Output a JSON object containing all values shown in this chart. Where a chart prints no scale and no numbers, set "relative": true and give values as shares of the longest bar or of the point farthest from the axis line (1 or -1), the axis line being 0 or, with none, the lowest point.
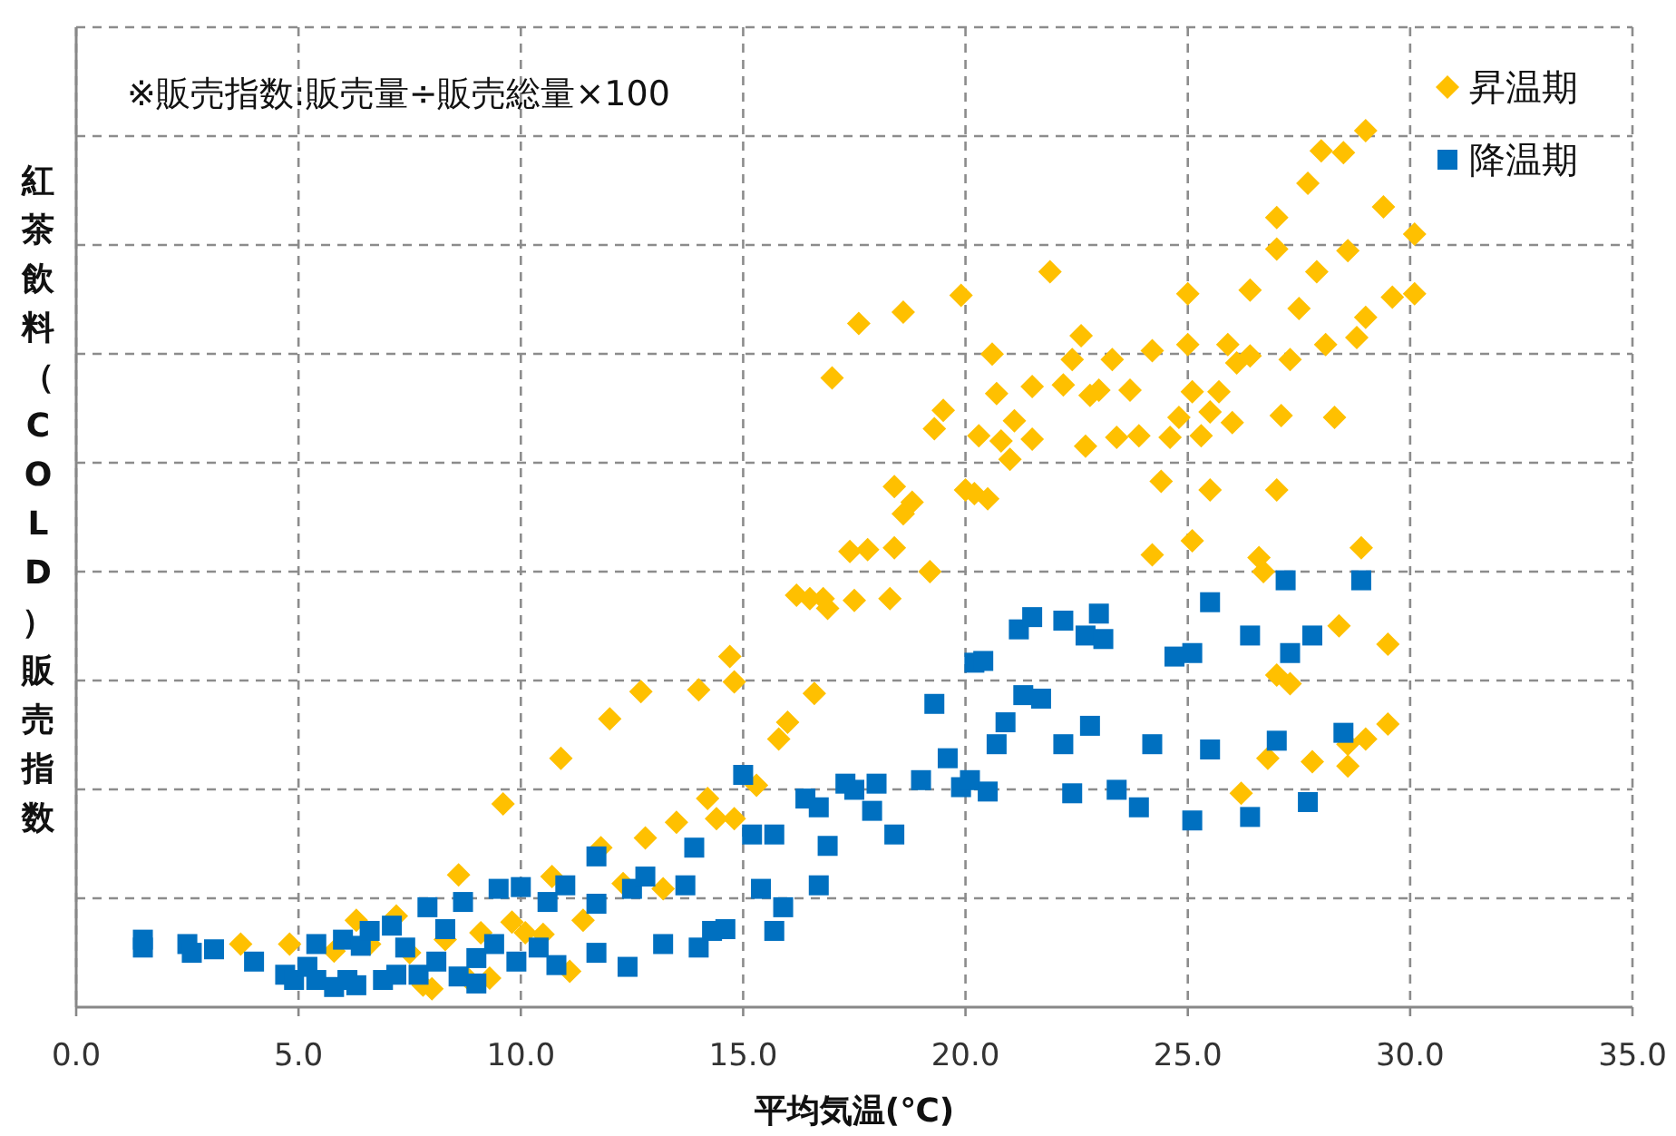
{
  "chart_data": {
    "type": "scatter",
    "relative": true,
    "xlabel": "平均気温(℃)",
    "ylabel": "紅茶飲料（COLD）販売指数",
    "annotations": [
      "※販売指数:販売量÷販売総量×100"
    ],
    "xlim": [
      0,
      35
    ],
    "xticks": [
      {
        "value": 0,
        "label": "0.0"
      },
      {
        "value": 5,
        "label": "5.0"
      },
      {
        "value": 10,
        "label": "10.0"
      },
      {
        "value": 15,
        "label": "15.0"
      },
      {
        "value": 20,
        "label": "20.0"
      },
      {
        "value": 25,
        "label": "25.0"
      },
      {
        "value": 30,
        "label": "30.0"
      },
      {
        "value": 35,
        "label": "35.0"
      }
    ],
    "grid": true,
    "legend": "top right",
    "series": [
      {
        "name": "昇温期",
        "color": "#ffc000",
        "marker": "diamond",
        "x": [
          3.7,
          4.8,
          5.8,
          6.3,
          6.6,
          7.2,
          7.5,
          7.8,
          8.0,
          8.3,
          8.6,
          8.8,
          9.1,
          9.3,
          9.6,
          9.8,
          10.1,
          10.5,
          10.7,
          10.9,
          11.1,
          11.4,
          11.8,
          12.0,
          12.3,
          12.8,
          12.7,
          13.2,
          13.5,
          14.0,
          14.2,
          14.4,
          14.7,
          14.8,
          14.8,
          15.3,
          15.8,
          16.0,
          16.2,
          16.6,
          16.5,
          16.8,
          16.9,
          17.0,
          17.6,
          17.4,
          17.5,
          17.8,
          18.3,
          18.4,
          18.4,
          18.6,
          18.6,
          18.8,
          19.2,
          19.3,
          19.5,
          19.9,
          20.0,
          20.2,
          20.3,
          20.5,
          20.6,
          20.7,
          20.8,
          21.0,
          21.1,
          21.5,
          21.5,
          21.9,
          22.2,
          22.4,
          22.6,
          22.7,
          22.8,
          23.0,
          23.3,
          23.4,
          23.7,
          23.9,
          24.2,
          24.4,
          24.2,
          24.6,
          24.8,
          25.0,
          25.0,
          25.1,
          25.1,
          25.3,
          25.5,
          25.5,
          25.7,
          25.9,
          26.0,
          26.1,
          26.2,
          26.4,
          26.4,
          26.6,
          26.7,
          26.8,
          27.0,
          27.0,
          27.0,
          27.1,
          27.3,
          27.3,
          27.5,
          27.7,
          27.8,
          27.9,
          28.0,
          28.1,
          28.3,
          28.4,
          28.5,
          28.6,
          28.6,
          28.6,
          28.8,
          28.9,
          29.0,
          29.0,
          29.0,
          29.4,
          29.6,
          29.5,
          29.5,
          30.1,
          30.1,
          27.0
        ],
        "values": [
          0.072,
          0.072,
          0.064,
          0.099,
          0.072,
          0.104,
          0.062,
          0.025,
          0.021,
          0.077,
          0.151,
          0.033,
          0.085,
          0.033,
          0.232,
          0.097,
          0.085,
          0.083,
          0.149,
          0.284,
          0.041,
          0.099,
          0.182,
          0.329,
          0.141,
          0.193,
          0.36,
          0.135,
          0.211,
          0.362,
          0.238,
          0.215,
          0.4,
          0.371,
          0.215,
          0.253,
          0.306,
          0.325,
          0.47,
          0.358,
          0.466,
          0.466,
          0.455,
          0.718,
          0.78,
          0.52,
          0.464,
          0.522,
          0.466,
          0.524,
          0.594,
          0.793,
          0.563,
          0.576,
          0.497,
          0.66,
          0.681,
          0.812,
          0.59,
          0.586,
          0.652,
          0.58,
          0.745,
          0.7,
          0.646,
          0.625,
          0.669,
          0.708,
          0.648,
          0.839,
          0.71,
          0.739,
          0.766,
          0.64,
          0.698,
          0.704,
          0.739,
          0.65,
          0.704,
          0.652,
          0.749,
          0.6,
          0.516,
          0.65,
          0.673,
          0.756,
          0.814,
          0.702,
          0.532,
          0.652,
          0.679,
          0.59,
          0.702,
          0.756,
          0.667,
          0.735,
          0.244,
          0.818,
          0.743,
          0.513,
          0.497,
          0.284,
          0.379,
          0.901,
          0.59,
          0.675,
          0.369,
          0.739,
          0.797,
          0.94,
          0.28,
          0.839,
          0.977,
          0.756,
          0.673,
          0.435,
          0.975,
          0.3,
          0.275,
          0.863,
          0.764,
          0.524,
          1.0,
          0.306,
          0.787,
          0.913,
          0.81,
          0.414,
          0.323,
          0.882,
          0.814,
          0.865
        ]
      },
      {
        "name": "降温期",
        "color": "#0070c0",
        "marker": "square",
        "x": [
          1.5,
          1.5,
          2.5,
          2.6,
          3.1,
          4.0,
          4.7,
          4.9,
          5.2,
          5.4,
          5.4,
          5.8,
          6.0,
          6.1,
          6.3,
          6.4,
          6.6,
          6.9,
          7.1,
          7.2,
          7.4,
          7.7,
          7.9,
          8.1,
          8.3,
          8.6,
          8.7,
          9.0,
          9.0,
          9.4,
          9.5,
          9.9,
          10.0,
          10.4,
          10.6,
          10.8,
          11.0,
          11.7,
          11.7,
          11.7,
          12.4,
          12.5,
          12.8,
          13.2,
          13.7,
          13.9,
          14.0,
          14.3,
          14.6,
          15.0,
          15.2,
          15.4,
          15.7,
          15.7,
          15.9,
          16.4,
          16.7,
          16.7,
          16.9,
          17.3,
          17.5,
          18.0,
          17.9,
          18.4,
          19.0,
          19.3,
          19.6,
          19.9,
          20.1,
          20.2,
          20.4,
          20.5,
          20.7,
          20.9,
          21.2,
          21.3,
          21.5,
          21.7,
          22.2,
          22.2,
          22.4,
          22.7,
          22.8,
          23.0,
          23.1,
          23.4,
          23.9,
          24.2,
          24.7,
          25.1,
          25.1,
          25.5,
          25.5,
          26.4,
          26.4,
          27.0,
          27.2,
          27.3,
          27.7,
          27.8,
          28.5,
          28.9
        ],
        "values": [
          0.077,
          0.068,
          0.072,
          0.062,
          0.066,
          0.052,
          0.037,
          0.031,
          0.046,
          0.072,
          0.031,
          0.023,
          0.077,
          0.031,
          0.025,
          0.07,
          0.087,
          0.031,
          0.093,
          0.037,
          0.068,
          0.037,
          0.114,
          0.052,
          0.089,
          0.035,
          0.12,
          0.056,
          0.027,
          0.072,
          0.135,
          0.052,
          0.137,
          0.068,
          0.12,
          0.048,
          0.139,
          0.172,
          0.118,
          0.062,
          0.046,
          0.135,
          0.149,
          0.072,
          0.139,
          0.182,
          0.068,
          0.087,
          0.089,
          0.265,
          0.197,
          0.135,
          0.197,
          0.087,
          0.114,
          0.238,
          0.228,
          0.139,
          0.184,
          0.255,
          0.248,
          0.255,
          0.224,
          0.197,
          0.259,
          0.346,
          0.284,
          0.251,
          0.259,
          0.393,
          0.395,
          0.246,
          0.3,
          0.325,
          0.431,
          0.356,
          0.445,
          0.352,
          0.3,
          0.441,
          0.244,
          0.424,
          0.321,
          0.449,
          0.42,
          0.248,
          0.228,
          0.3,
          0.4,
          0.404,
          0.213,
          0.462,
          0.294,
          0.424,
          0.217,
          0.304,
          0.487,
          0.404,
          0.234,
          0.424,
          0.313,
          0.487
        ]
      }
    ]
  }
}
